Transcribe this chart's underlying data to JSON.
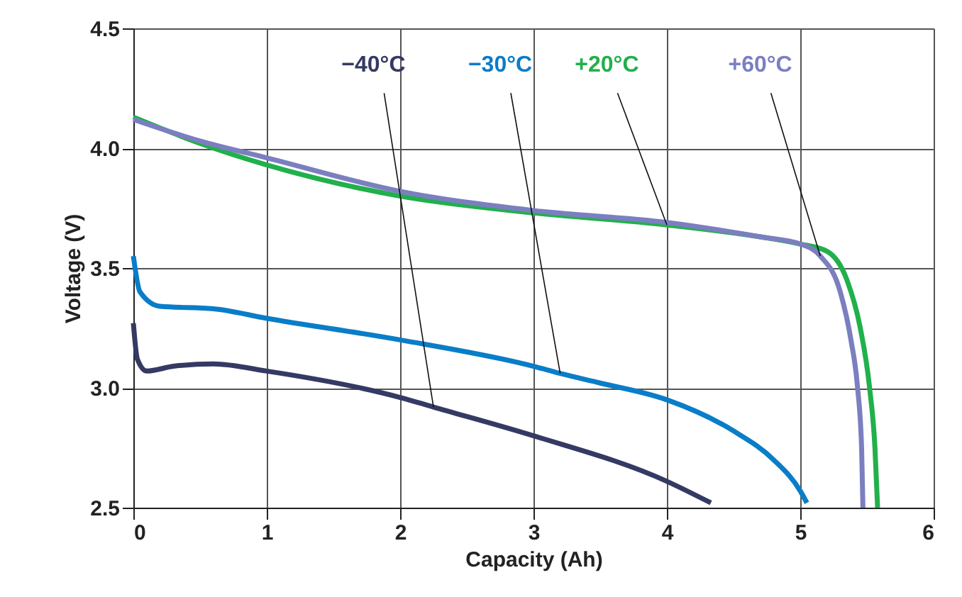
{
  "chart_data": {
    "type": "line",
    "xlabel": "Capacity (Ah)",
    "ylabel": "Voltage (V)",
    "xlim": [
      0,
      6
    ],
    "ylim": [
      2.5,
      4.5
    ],
    "xticks": [
      0,
      1,
      2,
      3,
      4,
      5,
      6
    ],
    "yticks": [
      {
        "value": 2.5,
        "label": "2.5"
      },
      {
        "value": 3,
        "label": "3.0"
      },
      {
        "value": 3.5,
        "label": "3.5"
      },
      {
        "value": 4,
        "label": "4.0"
      },
      {
        "value": 4.5,
        "label": "4.5"
      }
    ],
    "grid": true,
    "legend": false,
    "marker": "none",
    "line_style": "solid",
    "series": [
      {
        "name": "−40°C",
        "color": "#343a63",
        "x": [
          0,
          0.03,
          0.1,
          0.3,
          0.6,
          1,
          2,
          2.25,
          3,
          4,
          4.33
        ],
        "values": [
          3.27,
          3.12,
          3.07,
          3.09,
          3.1,
          3.07,
          2.96,
          2.92,
          2.8,
          2.61,
          2.52
        ]
      },
      {
        "name": "−30°C",
        "color": "#0a7dc8",
        "x": [
          0,
          0.05,
          0.2,
          0.6,
          1,
          2,
          3,
          3.2,
          3.5,
          4,
          4.5,
          4.8,
          5,
          5.05
        ],
        "values": [
          3.55,
          3.4,
          3.34,
          3.33,
          3.29,
          3.2,
          3.09,
          3.06,
          3.02,
          2.95,
          2.82,
          2.7,
          2.57,
          2.52
        ]
      },
      {
        "name": "+20°C",
        "color": "#21b04b",
        "x": [
          0,
          0.5,
          1,
          2,
          3,
          4,
          4.7,
          5,
          5.2,
          5.35,
          5.45,
          5.52,
          5.56,
          5.58
        ],
        "values": [
          4.13,
          4.02,
          3.93,
          3.8,
          3.73,
          3.68,
          3.63,
          3.6,
          3.57,
          3.45,
          3.25,
          3.0,
          2.75,
          2.5
        ]
      },
      {
        "name": "+60°C",
        "color": "#7b7fc0",
        "x": [
          0,
          0.5,
          1,
          2,
          3,
          4,
          4.7,
          5,
          5.15,
          5.3,
          5.38,
          5.43,
          5.46,
          5.47
        ],
        "values": [
          4.12,
          4.03,
          3.96,
          3.82,
          3.74,
          3.69,
          3.63,
          3.6,
          3.55,
          3.4,
          3.2,
          3.0,
          2.75,
          2.5
        ]
      }
    ]
  }
}
